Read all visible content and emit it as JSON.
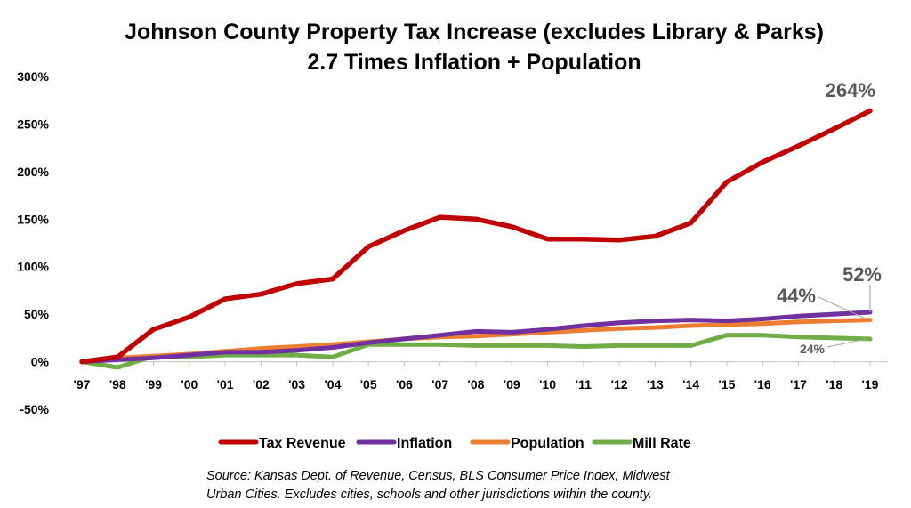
{
  "chart_data": {
    "type": "line",
    "title": "Johnson County Property Tax Increase (excludes Library & Parks)",
    "subtitle": "2.7 Times Inflation + Population",
    "categories": [
      "'97",
      "'98",
      "'99",
      "'00",
      "'01",
      "'02",
      "'03",
      "'04",
      "'05",
      "'06",
      "'07",
      "'08",
      "'09",
      "'10",
      "'11",
      "'12",
      "'13",
      "'14",
      "'15",
      "'16",
      "'17",
      "'18",
      "'19"
    ],
    "y_ticks": [
      "300%",
      "250%",
      "200%",
      "150%",
      "100%",
      "50%",
      "0%",
      "-50%"
    ],
    "ylim": [
      -50,
      300
    ],
    "y_unit": "%",
    "grid": false,
    "legend_position": "bottom",
    "series": [
      {
        "name": "Tax Revenue",
        "color": "#c00000",
        "values": [
          0,
          5,
          34,
          47,
          66,
          71,
          82,
          87,
          121,
          138,
          152,
          150,
          142,
          129,
          129,
          128,
          132,
          146,
          189,
          210,
          227,
          245,
          264
        ]
      },
      {
        "name": "Inflation",
        "color": "#7030a0",
        "values": [
          0,
          2,
          4,
          7,
          10,
          10,
          12,
          15,
          20,
          24,
          28,
          32,
          31,
          34,
          38,
          41,
          43,
          44,
          43,
          45,
          48,
          50,
          52
        ]
      },
      {
        "name": "Population",
        "color": "#ed7d31",
        "values": [
          0,
          4,
          6,
          8,
          11,
          14,
          16,
          18,
          21,
          24,
          26,
          27,
          29,
          31,
          33,
          35,
          36,
          38,
          39,
          40,
          42,
          43,
          44
        ]
      },
      {
        "name": "Mill Rate",
        "color": "#70ad47",
        "values": [
          0,
          -6,
          6,
          5,
          7,
          7,
          7,
          5,
          18,
          18,
          18,
          17,
          17,
          17,
          16,
          17,
          17,
          17,
          28,
          28,
          26,
          25,
          24
        ]
      }
    ],
    "annotations": {
      "tax_revenue_end": "264%",
      "inflation_end": "52%",
      "population_end": "44%",
      "mill_rate_end": "24%"
    },
    "source_lines": [
      "Source: Kansas Dept. of Revenue, Census, BLS Consumer Price Index, Midwest",
      "Urban Cities.  Excludes cities, schools and other jurisdictions within the county."
    ]
  }
}
